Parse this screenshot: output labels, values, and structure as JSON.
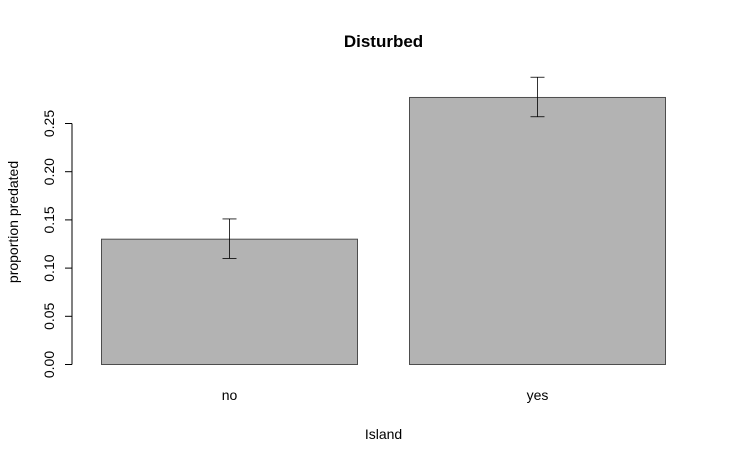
{
  "chart_data": {
    "type": "bar",
    "title": "Disturbed",
    "xlabel": "Island",
    "ylabel": "proportion predated",
    "categories": [
      "no",
      "yes"
    ],
    "values": [
      0.13,
      0.277
    ],
    "error_bars": [
      {
        "lower": 0.11,
        "upper": 0.151
      },
      {
        "lower": 0.257,
        "upper": 0.298
      }
    ],
    "yticks": [
      0.0,
      0.05,
      0.1,
      0.15,
      0.2,
      0.25
    ],
    "ytick_labels": [
      "0.00",
      "0.05",
      "0.10",
      "0.15",
      "0.20",
      "0.25"
    ],
    "ylim": [
      0,
      0.3
    ],
    "grid": false,
    "bar_color": "#b3b3b3",
    "bar_stroke": "#4d4d4d"
  }
}
